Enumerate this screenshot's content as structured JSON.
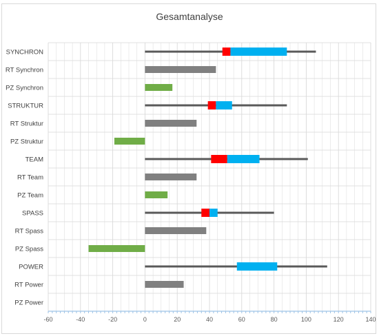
{
  "chart_data": {
    "type": "bar",
    "title": "Gesamtanalyse",
    "xlim": [
      -60,
      140
    ],
    "x_ticks": [
      "-60",
      "-40",
      "-20",
      "0",
      "20",
      "40",
      "60",
      "80",
      "100",
      "120",
      "140"
    ],
    "categories": [
      "SYNCHRON",
      "RT Synchron",
      "PZ Synchron",
      "STRUKTUR",
      "RT Struktur",
      "PZ Struktur",
      "TEAM",
      "RT Team",
      "PZ Team",
      "SPASS",
      "RT Spass",
      "PZ Spass",
      "POWER",
      "RT Power",
      "PZ Power"
    ],
    "rows": [
      {
        "kind": "box",
        "line": [
          0,
          106
        ],
        "red": [
          48,
          53
        ],
        "blue": [
          53,
          88
        ]
      },
      {
        "kind": "bar",
        "value": 44,
        "color": "#808080"
      },
      {
        "kind": "bar",
        "value": 17,
        "color": "#70ad47"
      },
      {
        "kind": "box",
        "line": [
          0,
          88
        ],
        "red": [
          39,
          44
        ],
        "blue": [
          44,
          54
        ]
      },
      {
        "kind": "bar",
        "value": 32,
        "color": "#808080"
      },
      {
        "kind": "bar",
        "value": -19,
        "color": "#70ad47"
      },
      {
        "kind": "box",
        "line": [
          0,
          101
        ],
        "red": [
          41,
          51
        ],
        "blue": [
          51,
          71
        ]
      },
      {
        "kind": "bar",
        "value": 32,
        "color": "#808080"
      },
      {
        "kind": "bar",
        "value": 14,
        "color": "#70ad47"
      },
      {
        "kind": "box",
        "line": [
          0,
          80
        ],
        "red": [
          35,
          40
        ],
        "blue": [
          40,
          45
        ]
      },
      {
        "kind": "bar",
        "value": 38,
        "color": "#808080"
      },
      {
        "kind": "bar",
        "value": -35,
        "color": "#70ad47"
      },
      {
        "kind": "box",
        "line": [
          0,
          113
        ],
        "red": null,
        "blue": [
          57,
          82
        ]
      },
      {
        "kind": "bar",
        "value": 24,
        "color": "#808080"
      },
      {
        "kind": "bar",
        "value": null,
        "color": "#70ad47"
      }
    ],
    "colors": {
      "line": "#595959",
      "red": "#ff0000",
      "blue": "#00b0f0",
      "grid": "#d9d9d9",
      "axis": "#9dc3e6"
    },
    "grid": true
  }
}
